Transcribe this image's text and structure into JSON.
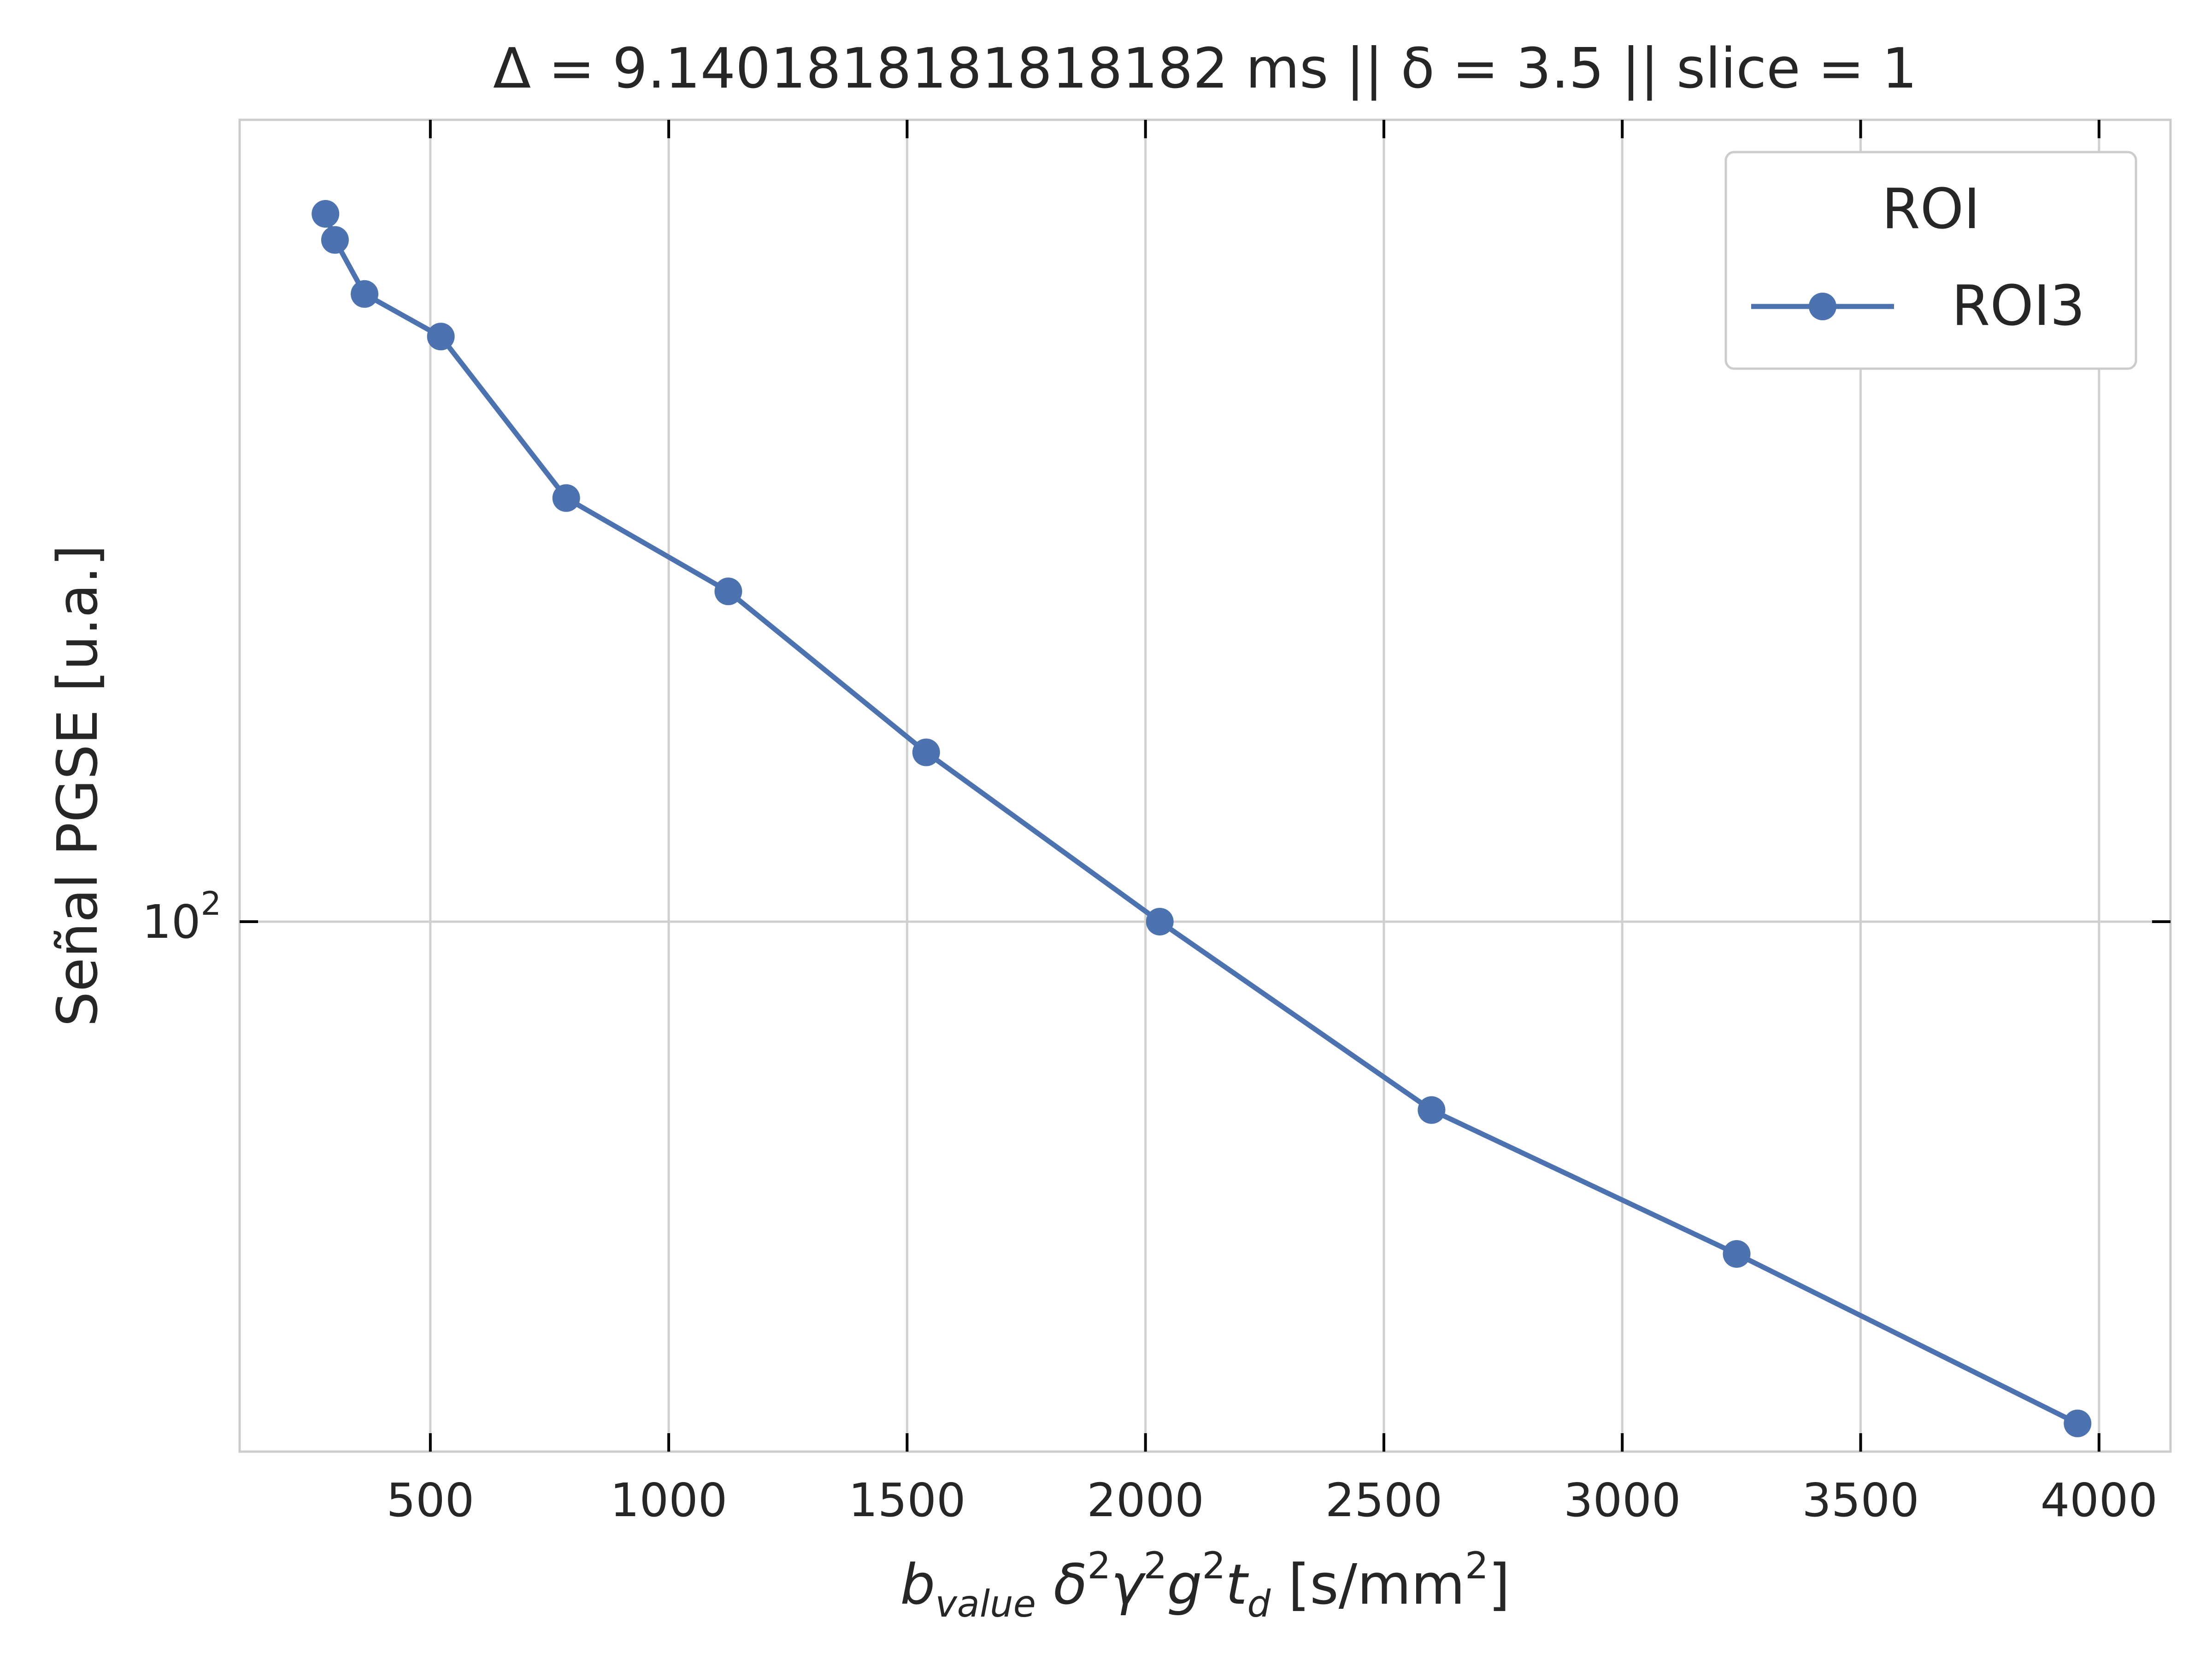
{
  "chart_data": {
    "type": "line",
    "title": "Δ = 9.1401818181818182 ms  ||  δ = 3.5 || slice = 1",
    "xlabel": {
      "parts": [
        {
          "text": "b",
          "italic": true
        },
        {
          "text": "value",
          "italic": true,
          "sub": true
        },
        {
          "text": " δ",
          "italic": true
        },
        {
          "text": "2",
          "sup": true
        },
        {
          "text": "γ",
          "italic": true
        },
        {
          "text": "2",
          "sup": true
        },
        {
          "text": "g",
          "italic": true
        },
        {
          "text": "2",
          "sup": true
        },
        {
          "text": "t",
          "italic": true
        },
        {
          "text": "d",
          "italic": true,
          "sub": true
        },
        {
          "text": " [s/mm"
        },
        {
          "text": "2",
          "sup": true
        },
        {
          "text": "]"
        }
      ]
    },
    "ylabel": "Señal PGSE [u.a.]",
    "xlim": [
      100,
      4150
    ],
    "ylim": [
      40,
      400
    ],
    "y_scale": "log",
    "grid": true,
    "x_ticks": [
      500,
      1000,
      1500,
      2000,
      2500,
      3000,
      3500,
      4000
    ],
    "x_tick_labels": [
      "500",
      "1000",
      "1500",
      "2000",
      "2500",
      "3000",
      "3500",
      "4000"
    ],
    "y_ticks": [
      100
    ],
    "y_tick_label": {
      "base": "10",
      "exp": "2"
    },
    "legend": {
      "title": "ROI",
      "position": "top-right"
    },
    "series": [
      {
        "name": "ROI3",
        "color": "#4c72b0",
        "marker": "circle",
        "x": [
          280,
          300,
          362,
          522,
          785,
          1125,
          1540,
          2030,
          2600,
          3240,
          3955
        ],
        "y": [
          340,
          325,
          296,
          275,
          208,
          177,
          134,
          100,
          72.2,
          56.3,
          42.0
        ]
      }
    ]
  }
}
